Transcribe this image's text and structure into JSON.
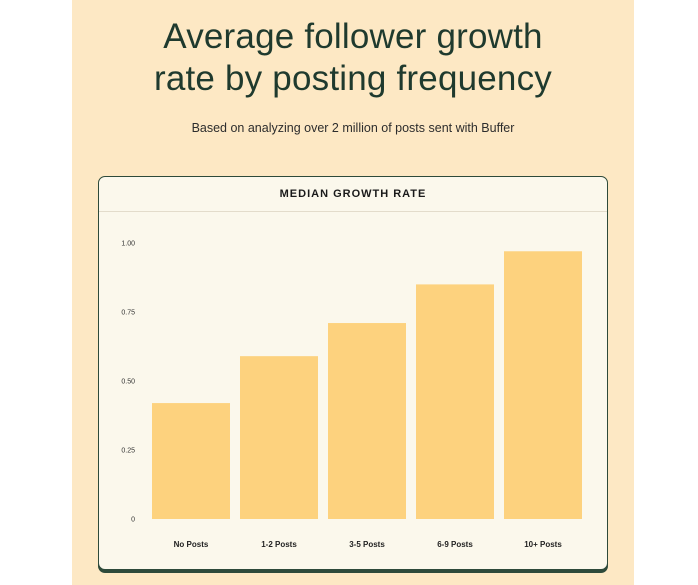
{
  "title_line1": "Average follower growth",
  "title_line2": "rate by posting frequency",
  "subtitle": "Based on analyzing over 2 million of posts sent with Buffer",
  "chart_data": {
    "type": "bar",
    "title": "MEDIAN GROWTH RATE",
    "xlabel": "",
    "ylabel": "",
    "categories": [
      "No Posts",
      "1-2 Posts",
      "3-5 Posts",
      "6-9 Posts",
      "10+ Posts"
    ],
    "values": [
      0.42,
      0.59,
      0.71,
      0.85,
      0.97
    ],
    "ylim": [
      0,
      1.0
    ],
    "yticks": [
      0,
      0.25,
      0.5,
      0.75,
      1.0
    ],
    "ytick_labels": [
      "0",
      "0.25",
      "0.50",
      "0.75",
      "1.00"
    ],
    "grid": false,
    "legend": "none",
    "bar_color": "#fdd27e"
  }
}
